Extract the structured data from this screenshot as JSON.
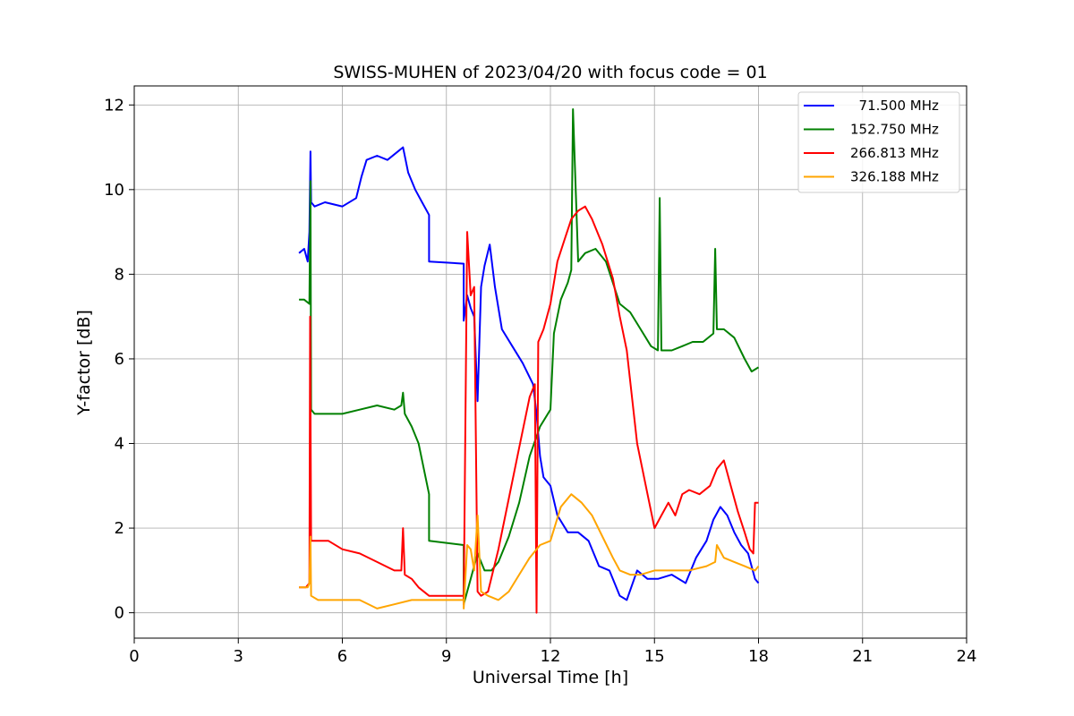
{
  "chart_data": {
    "type": "line",
    "title": "SWISS-MUHEN of 2023/04/20 with focus code = 01",
    "xlabel": "Universal Time [h]",
    "ylabel": "Y-factor [dB]",
    "xlim": [
      0,
      24
    ],
    "ylim": [
      -0.6,
      12.45
    ],
    "x_ticks": [
      0,
      3,
      6,
      9,
      12,
      15,
      18,
      21,
      24
    ],
    "x_tick_labels": [
      "0",
      "3",
      "6",
      "9",
      "12",
      "15",
      "18",
      "21",
      "24"
    ],
    "y_ticks": [
      0,
      2,
      4,
      6,
      8,
      10,
      12
    ],
    "y_tick_labels": [
      "0",
      "2",
      "4",
      "6",
      "8",
      "10",
      "12"
    ],
    "grid": true,
    "legend_position": "top-right",
    "series": [
      {
        "name": "71.500 MHz",
        "legend_label": "  71.500 MHz",
        "color": "#0000ff",
        "x": [
          4.75,
          4.9,
          5.0,
          5.05,
          5.08,
          5.1,
          5.2,
          5.5,
          6.0,
          6.4,
          6.55,
          6.7,
          7.0,
          7.3,
          7.6,
          7.75,
          7.9,
          8.1,
          8.3,
          8.5,
          8.5,
          9.5,
          9.5,
          9.6,
          9.7,
          9.8,
          9.9,
          10.0,
          10.1,
          10.25,
          10.4,
          10.6,
          10.9,
          11.2,
          11.5,
          11.6,
          11.7,
          11.8,
          12.0,
          12.2,
          12.5,
          12.8,
          13.1,
          13.4,
          13.7,
          14.0,
          14.2,
          14.5,
          14.8,
          15.1,
          15.5,
          15.9,
          16.2,
          16.5,
          16.7,
          16.9,
          17.1,
          17.3,
          17.5,
          17.7,
          17.9,
          18.0
        ],
        "y": [
          8.5,
          8.6,
          8.3,
          9.0,
          10.9,
          9.7,
          9.6,
          9.7,
          9.6,
          9.8,
          10.3,
          10.7,
          10.8,
          10.7,
          10.9,
          11.0,
          10.4,
          10.0,
          9.7,
          9.4,
          8.3,
          8.25,
          6.9,
          7.5,
          7.2,
          7.0,
          5.0,
          7.7,
          8.2,
          8.7,
          7.7,
          6.7,
          6.3,
          5.9,
          5.4,
          4.7,
          3.7,
          3.2,
          3.0,
          2.3,
          1.9,
          1.9,
          1.7,
          1.1,
          1.0,
          0.4,
          0.3,
          1.0,
          0.8,
          0.8,
          0.9,
          0.7,
          1.3,
          1.7,
          2.2,
          2.5,
          2.3,
          1.9,
          1.6,
          1.4,
          0.8,
          0.7
        ]
      },
      {
        "name": "152.750 MHz",
        "legend_label": "152.750 MHz",
        "color": "#008000",
        "x": [
          4.75,
          4.9,
          5.05,
          5.08,
          5.1,
          5.2,
          5.5,
          6.0,
          6.5,
          7.0,
          7.5,
          7.7,
          7.75,
          7.8,
          8.0,
          8.2,
          8.4,
          8.5,
          8.5,
          9.5,
          9.5,
          9.7,
          9.9,
          10.1,
          10.3,
          10.5,
          10.8,
          11.1,
          11.4,
          11.7,
          12.0,
          12.1,
          12.3,
          12.5,
          12.6,
          12.65,
          12.8,
          13.0,
          13.3,
          13.6,
          13.8,
          14.0,
          14.3,
          14.6,
          14.9,
          15.1,
          15.15,
          15.2,
          15.5,
          15.8,
          16.1,
          16.4,
          16.7,
          16.75,
          16.8,
          17.0,
          17.3,
          17.6,
          17.8,
          18.0
        ],
        "y": [
          7.4,
          7.4,
          7.3,
          10.2,
          4.8,
          4.7,
          4.7,
          4.7,
          4.8,
          4.9,
          4.8,
          4.9,
          5.2,
          4.7,
          4.4,
          4.0,
          3.2,
          2.8,
          1.7,
          1.6,
          0.2,
          0.8,
          1.4,
          1.0,
          1.0,
          1.2,
          1.8,
          2.6,
          3.7,
          4.4,
          4.8,
          6.6,
          7.4,
          7.8,
          8.1,
          11.9,
          8.3,
          8.5,
          8.6,
          8.3,
          7.8,
          7.3,
          7.1,
          6.7,
          6.3,
          6.2,
          9.8,
          6.2,
          6.2,
          6.3,
          6.4,
          6.4,
          6.6,
          8.6,
          6.7,
          6.7,
          6.5,
          6.0,
          5.7,
          5.8
        ]
      },
      {
        "name": "266.813 MHz",
        "legend_label": "266.813 MHz",
        "color": "#ff0000",
        "x": [
          4.75,
          4.95,
          5.05,
          5.07,
          5.1,
          5.2,
          5.6,
          6.0,
          6.5,
          7.0,
          7.5,
          7.7,
          7.75,
          7.8,
          8.0,
          8.2,
          8.5,
          8.5,
          9.5,
          9.5,
          9.6,
          9.7,
          9.8,
          9.9,
          10.0,
          10.2,
          10.5,
          10.8,
          11.1,
          11.4,
          11.55,
          11.6,
          11.65,
          11.8,
          12.0,
          12.2,
          12.4,
          12.6,
          12.8,
          13.0,
          13.2,
          13.5,
          13.8,
          14.0,
          14.2,
          14.5,
          14.8,
          15.0,
          15.2,
          15.4,
          15.6,
          15.8,
          16.0,
          16.3,
          16.6,
          16.8,
          17.0,
          17.2,
          17.4,
          17.6,
          17.75,
          17.85,
          17.9,
          18.0
        ],
        "y": [
          0.6,
          0.6,
          0.7,
          7.0,
          1.7,
          1.7,
          1.7,
          1.5,
          1.4,
          1.2,
          1.0,
          1.0,
          2.0,
          0.9,
          0.8,
          0.6,
          0.4,
          0.4,
          0.4,
          0.2,
          9.0,
          7.5,
          7.7,
          0.5,
          0.4,
          0.5,
          1.5,
          2.7,
          3.9,
          5.1,
          5.4,
          0.0,
          6.4,
          6.7,
          7.3,
          8.3,
          8.8,
          9.3,
          9.5,
          9.6,
          9.3,
          8.7,
          7.9,
          7.0,
          6.2,
          4.0,
          2.8,
          2.0,
          2.3,
          2.6,
          2.3,
          2.8,
          2.9,
          2.8,
          3.0,
          3.4,
          3.6,
          3.0,
          2.4,
          1.9,
          1.5,
          1.4,
          2.6,
          2.6
        ]
      },
      {
        "name": "326.188 MHz",
        "legend_label": "326.188 MHz",
        "color": "#ffa500",
        "x": [
          4.75,
          5.0,
          5.05,
          5.08,
          5.1,
          5.3,
          5.6,
          6.0,
          6.5,
          7.0,
          7.5,
          8.0,
          8.5,
          8.5,
          9.5,
          9.5,
          9.6,
          9.7,
          9.8,
          9.9,
          10.0,
          10.2,
          10.5,
          10.8,
          11.1,
          11.4,
          11.7,
          12.0,
          12.3,
          12.6,
          12.9,
          13.2,
          13.5,
          13.8,
          14.0,
          14.3,
          14.6,
          15.0,
          15.5,
          16.0,
          16.5,
          16.75,
          16.8,
          17.0,
          17.3,
          17.6,
          17.9,
          18.0
        ],
        "y": [
          0.6,
          0.6,
          0.7,
          1.8,
          0.4,
          0.3,
          0.3,
          0.3,
          0.3,
          0.1,
          0.2,
          0.3,
          0.3,
          0.3,
          0.3,
          0.1,
          1.6,
          1.5,
          1.0,
          2.3,
          0.5,
          0.4,
          0.3,
          0.5,
          0.9,
          1.3,
          1.6,
          1.7,
          2.5,
          2.8,
          2.6,
          2.3,
          1.8,
          1.3,
          1.0,
          0.9,
          0.9,
          1.0,
          1.0,
          1.0,
          1.1,
          1.2,
          1.6,
          1.3,
          1.2,
          1.1,
          1.0,
          1.1
        ]
      }
    ]
  }
}
